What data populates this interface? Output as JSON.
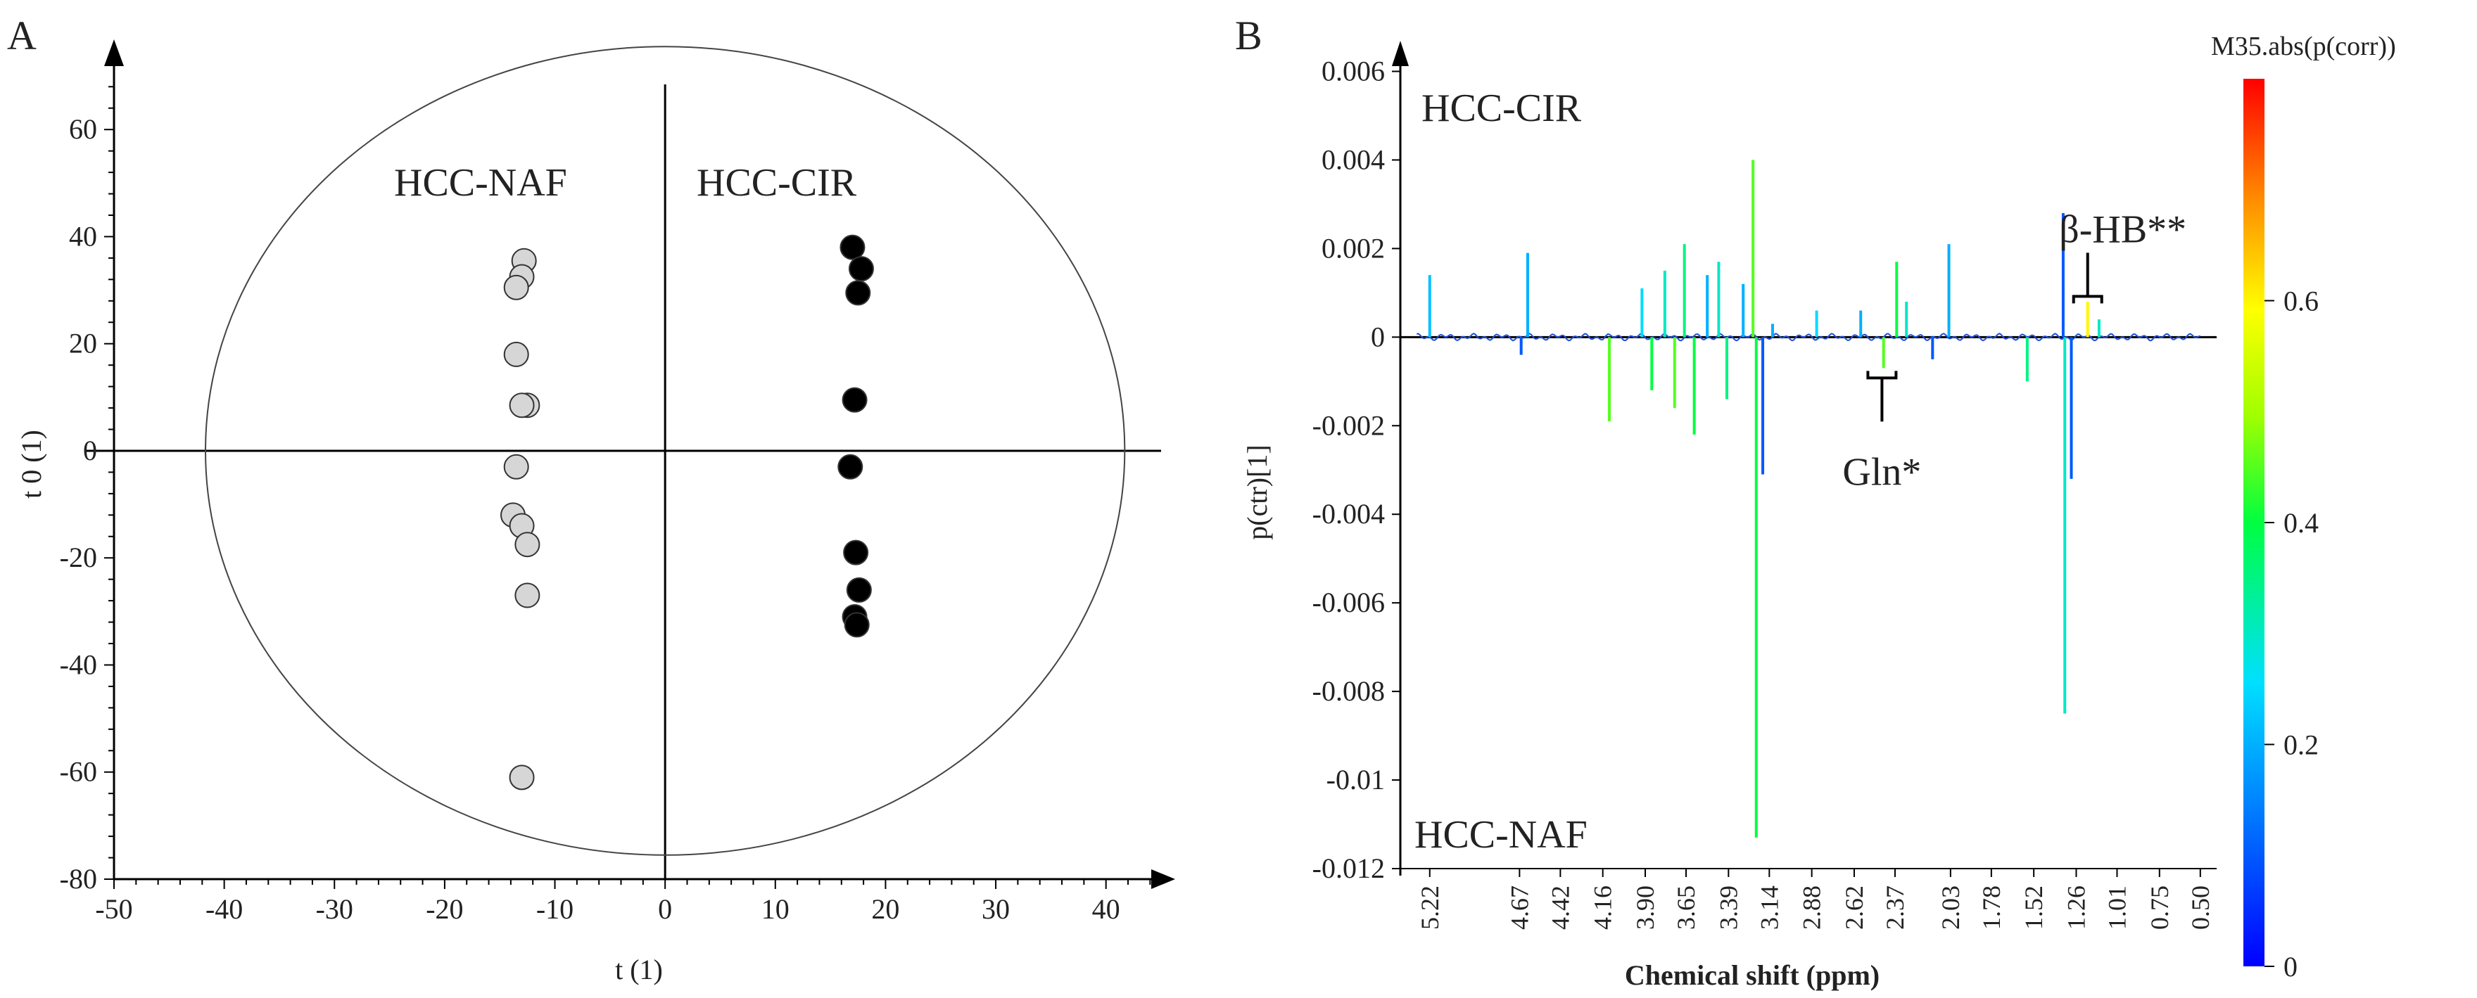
{
  "chart_data": [
    {
      "type": "scatter",
      "panel_label": "A",
      "xlabel": "t (1)",
      "ylabel": "t 0 (1)",
      "xlim": [
        -50,
        45
      ],
      "ylim": [
        -80,
        75
      ],
      "xticks": [
        "-50",
        "-40",
        "-30",
        "-20",
        "-10",
        "0",
        "10",
        "20",
        "30",
        "40"
      ],
      "yticks": [
        "-80",
        "-60",
        "-40",
        "-20",
        "0",
        "20",
        "40",
        "60"
      ],
      "ellipse": {
        "cx": 0,
        "cy": 0,
        "rx": 41.7,
        "ry": 75.5
      },
      "series": [
        {
          "name": "HCC-NAF",
          "color": "#d6d6d6",
          "points": [
            {
              "x": -12.8,
              "y": 35.5
            },
            {
              "x": -13.0,
              "y": 32.5
            },
            {
              "x": -13.5,
              "y": 30.5
            },
            {
              "x": -13.5,
              "y": 18.0
            },
            {
              "x": -12.5,
              "y": 8.5
            },
            {
              "x": -13.0,
              "y": 8.5
            },
            {
              "x": -13.5,
              "y": -3.0
            },
            {
              "x": -13.8,
              "y": -12.0
            },
            {
              "x": -13.0,
              "y": -14.0
            },
            {
              "x": -12.5,
              "y": -17.5
            },
            {
              "x": -12.5,
              "y": -27.0
            },
            {
              "x": -13.0,
              "y": -61.0
            }
          ]
        },
        {
          "name": "HCC-CIR",
          "color": "#000000",
          "points": [
            {
              "x": 17.0,
              "y": 38.0
            },
            {
              "x": 17.8,
              "y": 34.0
            },
            {
              "x": 17.5,
              "y": 29.5
            },
            {
              "x": 17.2,
              "y": 9.5
            },
            {
              "x": 16.8,
              "y": -3.0
            },
            {
              "x": 17.3,
              "y": -19.0
            },
            {
              "x": 17.6,
              "y": -26.0
            },
            {
              "x": 17.2,
              "y": -31.0
            },
            {
              "x": 17.4,
              "y": -32.5
            }
          ]
        }
      ],
      "annotations": [
        "HCC-NAF",
        "HCC-CIR"
      ]
    },
    {
      "type": "line",
      "panel_label": "B",
      "xlabel": "Chemical shift (ppm)",
      "ylabel": "p(ctr)[1]",
      "xlim": [
        5.4,
        0.4
      ],
      "ylim": [
        -0.012,
        0.0065
      ],
      "xticks": [
        "5.22",
        "4.67",
        "4.42",
        "4.16",
        "3.90",
        "3.65",
        "3.39",
        "3.14",
        "2.88",
        "2.62",
        "2.37",
        "2.03",
        "1.78",
        "1.52",
        "1.26",
        "1.01",
        "0.75",
        "0.50"
      ],
      "xtick_values": [
        5.22,
        4.67,
        4.42,
        4.16,
        3.9,
        3.65,
        3.39,
        3.14,
        2.88,
        2.62,
        2.37,
        2.03,
        1.78,
        1.52,
        1.26,
        1.01,
        0.75,
        0.5
      ],
      "yticks": [
        "-0.012",
        "-0.01",
        "-0.008",
        "-0.006",
        "-0.004",
        "-0.002",
        "0",
        "0.002",
        "0.004",
        "0.006"
      ],
      "ytick_values": [
        -0.012,
        -0.01,
        -0.008,
        -0.006,
        -0.004,
        -0.002,
        0,
        0.002,
        0.004,
        0.006
      ],
      "color_scale": {
        "title": "M35.abs(p(corr))",
        "ticks": [
          "0",
          "0.2",
          "0.4",
          "0.6"
        ],
        "tick_values": [
          0,
          0.2,
          0.4,
          0.6
        ],
        "range": [
          0,
          0.8
        ]
      },
      "group_labels": {
        "top": "HCC-CIR",
        "bottom": "HCC-NAF"
      },
      "annotations": [
        {
          "label": "Gln*",
          "ppm": 2.45,
          "direction": "down"
        },
        {
          "label": "β-HB**",
          "ppm": 1.19,
          "direction": "up"
        }
      ],
      "peaks": [
        {
          "ppm": 5.22,
          "value": 0.0014,
          "corr": 0.22
        },
        {
          "ppm": 4.62,
          "value": 0.0019,
          "corr": 0.2
        },
        {
          "ppm": 4.66,
          "value": -0.0004,
          "corr": 0.1
        },
        {
          "ppm": 4.12,
          "value": -0.0019,
          "corr": 0.45
        },
        {
          "ppm": 3.92,
          "value": 0.0011,
          "corr": 0.25
        },
        {
          "ppm": 3.86,
          "value": -0.0012,
          "corr": 0.4
        },
        {
          "ppm": 3.78,
          "value": 0.0015,
          "corr": 0.3
        },
        {
          "ppm": 3.72,
          "value": -0.0016,
          "corr": 0.45
        },
        {
          "ppm": 3.66,
          "value": 0.0021,
          "corr": 0.35
        },
        {
          "ppm": 3.6,
          "value": -0.0022,
          "corr": 0.4
        },
        {
          "ppm": 3.52,
          "value": 0.0014,
          "corr": 0.2
        },
        {
          "ppm": 3.45,
          "value": 0.0017,
          "corr": 0.3
        },
        {
          "ppm": 3.4,
          "value": -0.0014,
          "corr": 0.35
        },
        {
          "ppm": 3.3,
          "value": 0.0012,
          "corr": 0.2
        },
        {
          "ppm": 3.24,
          "value": 0.004,
          "corr": 0.45
        },
        {
          "ppm": 3.22,
          "value": -0.0113,
          "corr": 0.4
        },
        {
          "ppm": 3.18,
          "value": -0.0031,
          "corr": 0.1
        },
        {
          "ppm": 3.12,
          "value": 0.0003,
          "corr": 0.2
        },
        {
          "ppm": 2.85,
          "value": 0.0006,
          "corr": 0.25
        },
        {
          "ppm": 2.58,
          "value": 0.0006,
          "corr": 0.2
        },
        {
          "ppm": 2.44,
          "value": -0.0007,
          "corr": 0.45
        },
        {
          "ppm": 2.36,
          "value": 0.0017,
          "corr": 0.4
        },
        {
          "ppm": 2.3,
          "value": 0.0008,
          "corr": 0.3
        },
        {
          "ppm": 2.14,
          "value": -0.0005,
          "corr": 0.1
        },
        {
          "ppm": 2.04,
          "value": 0.0021,
          "corr": 0.2
        },
        {
          "ppm": 1.56,
          "value": -0.001,
          "corr": 0.35
        },
        {
          "ppm": 1.34,
          "value": 0.0028,
          "corr": 0.1
        },
        {
          "ppm": 1.33,
          "value": -0.0085,
          "corr": 0.3
        },
        {
          "ppm": 1.29,
          "value": -0.0032,
          "corr": 0.1
        },
        {
          "ppm": 1.19,
          "value": 0.0008,
          "corr": 0.6
        },
        {
          "ppm": 1.12,
          "value": 0.0004,
          "corr": 0.3
        }
      ]
    }
  ]
}
